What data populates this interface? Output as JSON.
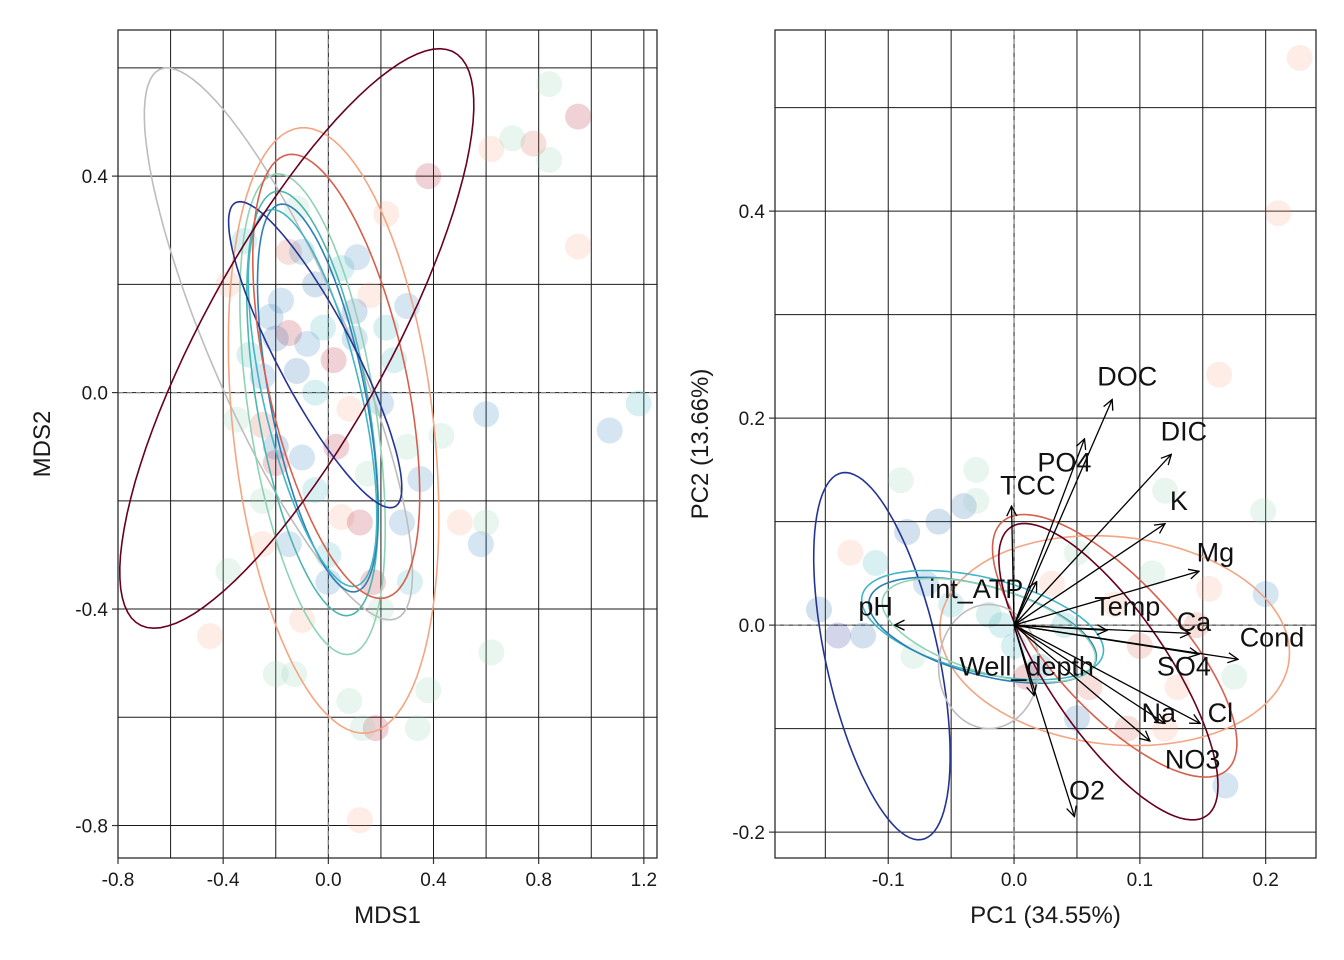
{
  "chart_data": [
    {
      "type": "scatter",
      "panel": "left",
      "xlabel": "MDS1",
      "ylabel": "MDS2",
      "xlim": [
        -0.8,
        1.25
      ],
      "ylim": [
        -0.86,
        0.67
      ],
      "xticks": [
        -0.8,
        -0.4,
        0.0,
        0.4,
        0.8,
        1.2
      ],
      "xtick_labels": [
        "-0.8",
        "-0.4",
        "0.0",
        "0.4",
        "0.8",
        "1.2"
      ],
      "yticks": [
        -0.8,
        -0.4,
        0.0,
        0.4
      ],
      "ytick_labels": [
        "-0.8",
        "-0.4",
        "0.0",
        "0.4"
      ],
      "grid": true,
      "zero_lines": "dashed",
      "marker_opacity": 0.2,
      "points": [
        {
          "x": 0.84,
          "y": 0.57,
          "color": "#8fd3b4"
        },
        {
          "x": 0.95,
          "y": 0.51,
          "color": "#b2182b"
        },
        {
          "x": 0.62,
          "y": 0.45,
          "color": "#f4a582"
        },
        {
          "x": 0.78,
          "y": 0.46,
          "color": "#d6604d"
        },
        {
          "x": 0.7,
          "y": 0.47,
          "color": "#8fd3b4"
        },
        {
          "x": 0.84,
          "y": 0.43,
          "color": "#8fd3b4"
        },
        {
          "x": 0.95,
          "y": 0.27,
          "color": "#f4a582"
        },
        {
          "x": 0.38,
          "y": 0.4,
          "color": "#b2182b"
        },
        {
          "x": 0.22,
          "y": 0.33,
          "color": "#f4a582"
        },
        {
          "x": -0.12,
          "y": 0.34,
          "color": "#8fd3b4"
        },
        {
          "x": -0.38,
          "y": 0.2,
          "color": "#f4a582"
        },
        {
          "x": -0.15,
          "y": 0.26,
          "color": "#d6604d"
        },
        {
          "x": -0.1,
          "y": 0.26,
          "color": "#2c7fb8"
        },
        {
          "x": 0.05,
          "y": 0.23,
          "color": "#41b6c4"
        },
        {
          "x": 0.11,
          "y": 0.25,
          "color": "#2c7fb8"
        },
        {
          "x": -0.18,
          "y": 0.17,
          "color": "#2c7fb8"
        },
        {
          "x": -0.22,
          "y": 0.14,
          "color": "#2c7fb8"
        },
        {
          "x": -0.15,
          "y": 0.11,
          "color": "#b2182b"
        },
        {
          "x": -0.2,
          "y": 0.1,
          "color": "#2166ac"
        },
        {
          "x": -0.08,
          "y": 0.09,
          "color": "#2c7fb8"
        },
        {
          "x": -0.02,
          "y": 0.12,
          "color": "#41b6c4"
        },
        {
          "x": 0.02,
          "y": 0.06,
          "color": "#b2182b"
        },
        {
          "x": -0.3,
          "y": 0.07,
          "color": "#41b6c4"
        },
        {
          "x": -0.25,
          "y": 0.03,
          "color": "#2c7fb8"
        },
        {
          "x": -0.12,
          "y": 0.04,
          "color": "#2166ac"
        },
        {
          "x": 0.1,
          "y": 0.1,
          "color": "#2c7fb8"
        },
        {
          "x": 0.22,
          "y": 0.12,
          "color": "#41b6c4"
        },
        {
          "x": 0.16,
          "y": 0.18,
          "color": "#f4a582"
        },
        {
          "x": 0.3,
          "y": 0.16,
          "color": "#2c7fb8"
        },
        {
          "x": -0.05,
          "y": 0.0,
          "color": "#41b6c4"
        },
        {
          "x": 0.08,
          "y": -0.03,
          "color": "#f4a582"
        },
        {
          "x": 0.2,
          "y": -0.02,
          "color": "#2c7fb8"
        },
        {
          "x": -0.35,
          "y": -0.05,
          "color": "#8fd3b4"
        },
        {
          "x": -0.2,
          "y": -0.1,
          "color": "#2166ac"
        },
        {
          "x": -0.1,
          "y": -0.12,
          "color": "#2c7fb8"
        },
        {
          "x": 0.03,
          "y": -0.1,
          "color": "#b2182b"
        },
        {
          "x": 0.15,
          "y": -0.15,
          "color": "#8fd3b4"
        },
        {
          "x": 0.3,
          "y": -0.1,
          "color": "#8fd3b4"
        },
        {
          "x": -0.2,
          "y": -0.13,
          "color": "#b2182b"
        },
        {
          "x": -0.05,
          "y": -0.18,
          "color": "#41b6c4"
        },
        {
          "x": 0.05,
          "y": -0.23,
          "color": "#f4a582"
        },
        {
          "x": 0.12,
          "y": -0.24,
          "color": "#b2182b"
        },
        {
          "x": 0.28,
          "y": -0.24,
          "color": "#2c7fb8"
        },
        {
          "x": -0.25,
          "y": -0.2,
          "color": "#8fd3b4"
        },
        {
          "x": -0.15,
          "y": -0.28,
          "color": "#2c7fb8"
        },
        {
          "x": 0.0,
          "y": -0.3,
          "color": "#41b6c4"
        },
        {
          "x": 0.58,
          "y": -0.28,
          "color": "#2c7fb8"
        },
        {
          "x": 0.6,
          "y": -0.24,
          "color": "#8fd3b4"
        },
        {
          "x": 0.5,
          "y": -0.24,
          "color": "#f4a582"
        },
        {
          "x": 0.43,
          "y": -0.08,
          "color": "#8fd3b4"
        },
        {
          "x": 0.6,
          "y": -0.04,
          "color": "#2c7fb8"
        },
        {
          "x": 1.07,
          "y": -0.07,
          "color": "#2c7fb8"
        },
        {
          "x": 1.18,
          "y": -0.02,
          "color": "#41b6c4"
        },
        {
          "x": -0.38,
          "y": -0.33,
          "color": "#8fd3b4"
        },
        {
          "x": 0.0,
          "y": -0.35,
          "color": "#2c7fb8"
        },
        {
          "x": 0.17,
          "y": -0.35,
          "color": "#b2182b"
        },
        {
          "x": 0.31,
          "y": -0.35,
          "color": "#41b6c4"
        },
        {
          "x": 0.2,
          "y": -0.4,
          "color": "#8fd3b4"
        },
        {
          "x": -0.1,
          "y": -0.42,
          "color": "#f4a582"
        },
        {
          "x": -0.45,
          "y": -0.45,
          "color": "#f4a582"
        },
        {
          "x": 0.62,
          "y": -0.48,
          "color": "#8fd3b4"
        },
        {
          "x": -0.13,
          "y": -0.52,
          "color": "#8fd3b4"
        },
        {
          "x": -0.2,
          "y": -0.52,
          "color": "#8fd3b4"
        },
        {
          "x": 0.38,
          "y": -0.55,
          "color": "#8fd3b4"
        },
        {
          "x": 0.08,
          "y": -0.57,
          "color": "#8fd3b4"
        },
        {
          "x": 0.18,
          "y": -0.62,
          "color": "#b2182b"
        },
        {
          "x": 0.34,
          "y": -0.62,
          "color": "#8fd3b4"
        },
        {
          "x": 0.13,
          "y": -0.62,
          "color": "#8fd3b4"
        },
        {
          "x": 0.12,
          "y": -0.79,
          "color": "#f4a582"
        },
        {
          "x": -0.25,
          "y": -0.28,
          "color": "#f4a582"
        },
        {
          "x": -0.32,
          "y": 0.28,
          "color": "#41b6c4"
        },
        {
          "x": -0.05,
          "y": 0.2,
          "color": "#2166ac"
        },
        {
          "x": 0.25,
          "y": 0.06,
          "color": "#41b6c4"
        },
        {
          "x": 0.1,
          "y": 0.15,
          "color": "#2166ac"
        },
        {
          "x": -0.25,
          "y": -0.06,
          "color": "#d6604d"
        },
        {
          "x": 0.35,
          "y": -0.16,
          "color": "#2c7fb8"
        }
      ],
      "ellipses": [
        {
          "cx": -0.19,
          "cy": 0.09,
          "rx": 0.69,
          "ry": 0.21,
          "angle_deg": -45,
          "color": "#bdbdbd"
        },
        {
          "cx": 0.02,
          "cy": -0.07,
          "rx": 0.58,
          "ry": 0.37,
          "angle_deg": -70,
          "color": "#f4a582"
        },
        {
          "cx": -0.06,
          "cy": -0.04,
          "rx": 0.47,
          "ry": 0.23,
          "angle_deg": -68,
          "color": "#8fd3b4"
        },
        {
          "cx": -0.06,
          "cy": -0.02,
          "rx": 0.42,
          "ry": 0.2,
          "angle_deg": -66,
          "color": "#4db6ac"
        },
        {
          "cx": -0.04,
          "cy": -0.01,
          "rx": 0.39,
          "ry": 0.17,
          "angle_deg": -64,
          "color": "#2c7fb8"
        },
        {
          "cx": -0.06,
          "cy": -0.01,
          "rx": 0.39,
          "ry": 0.17,
          "angle_deg": -60,
          "color": "#41b6c4"
        },
        {
          "cx": -0.05,
          "cy": 0.07,
          "rx": 0.42,
          "ry": 0.11,
          "angle_deg": -40,
          "color": "#253494"
        },
        {
          "cx": 0.03,
          "cy": 0.03,
          "rx": 0.46,
          "ry": 0.24,
          "angle_deg": -58,
          "color": "#d6604d"
        },
        {
          "cx": -0.12,
          "cy": 0.1,
          "rx": 0.82,
          "ry": 0.26,
          "angle_deg": 37,
          "color": "#67001f"
        }
      ]
    },
    {
      "type": "scatter",
      "panel": "right",
      "xlabel": "PC1 (34.55%)",
      "ylabel": "PC2 (13.66%)",
      "xlim": [
        -0.19,
        0.24
      ],
      "ylim": [
        -0.225,
        0.575
      ],
      "xticks": [
        -0.1,
        0.0,
        0.1,
        0.2
      ],
      "xtick_labels": [
        "-0.1",
        "0.0",
        "0.1",
        "0.2"
      ],
      "yticks": [
        -0.2,
        0.0,
        0.2,
        0.4
      ],
      "ytick_labels": [
        "-0.2",
        "0.0",
        "0.2",
        "0.4"
      ],
      "grid": true,
      "zero_lines": "dashed",
      "marker_opacity": 0.2,
      "points": [
        {
          "x": 0.227,
          "y": 0.548,
          "color": "#f4a582"
        },
        {
          "x": 0.21,
          "y": 0.398,
          "color": "#f4a582"
        },
        {
          "x": 0.163,
          "y": 0.242,
          "color": "#f4a582"
        },
        {
          "x": -0.04,
          "y": 0.115,
          "color": "#2166ac"
        },
        {
          "x": -0.085,
          "y": 0.09,
          "color": "#2166ac"
        },
        {
          "x": -0.155,
          "y": 0.015,
          "color": "#2166ac"
        },
        {
          "x": -0.12,
          "y": -0.01,
          "color": "#2166ac"
        },
        {
          "x": -0.03,
          "y": 0.15,
          "color": "#8fd3b4"
        },
        {
          "x": -0.11,
          "y": 0.06,
          "color": "#41b6c4"
        },
        {
          "x": -0.07,
          "y": 0.04,
          "color": "#2c7fb8"
        },
        {
          "x": -0.05,
          "y": 0.02,
          "color": "#41b6c4"
        },
        {
          "x": -0.02,
          "y": 0.01,
          "color": "#4db6ac"
        },
        {
          "x": 0.0,
          "y": -0.02,
          "color": "#41b6c4"
        },
        {
          "x": 0.02,
          "y": -0.04,
          "color": "#2c7fb8"
        },
        {
          "x": 0.03,
          "y": 0.04,
          "color": "#f4a582"
        },
        {
          "x": 0.05,
          "y": 0.07,
          "color": "#8fd3b4"
        },
        {
          "x": 0.08,
          "y": 0.02,
          "color": "#f4a582"
        },
        {
          "x": 0.1,
          "y": -0.02,
          "color": "#d6604d"
        },
        {
          "x": 0.06,
          "y": -0.06,
          "color": "#d6604d"
        },
        {
          "x": 0.09,
          "y": -0.1,
          "color": "#d6604d"
        },
        {
          "x": 0.12,
          "y": -0.1,
          "color": "#f4a582"
        },
        {
          "x": 0.145,
          "y": 0.0,
          "color": "#d6604d"
        },
        {
          "x": 0.155,
          "y": 0.035,
          "color": "#f4a582"
        },
        {
          "x": 0.198,
          "y": 0.11,
          "color": "#8fd3b4"
        },
        {
          "x": 0.2,
          "y": 0.03,
          "color": "#2c7fb8"
        },
        {
          "x": 0.175,
          "y": -0.05,
          "color": "#8fd3b4"
        },
        {
          "x": 0.168,
          "y": -0.155,
          "color": "#2c7fb8"
        },
        {
          "x": 0.12,
          "y": 0.13,
          "color": "#8fd3b4"
        },
        {
          "x": -0.03,
          "y": 0.12,
          "color": "#8fd3b4"
        },
        {
          "x": -0.09,
          "y": 0.14,
          "color": "#8fd3b4"
        },
        {
          "x": -0.13,
          "y": 0.07,
          "color": "#f4a582"
        },
        {
          "x": 0.01,
          "y": -0.05,
          "color": "#b2182b"
        },
        {
          "x": 0.05,
          "y": -0.09,
          "color": "#2166ac"
        },
        {
          "x": -0.01,
          "y": 0.0,
          "color": "#41b6c4"
        },
        {
          "x": 0.04,
          "y": 0.0,
          "color": "#41b6c4"
        },
        {
          "x": -0.08,
          "y": -0.03,
          "color": "#8fd3b4"
        },
        {
          "x": 0.11,
          "y": 0.05,
          "color": "#8fd3b4"
        },
        {
          "x": 0.13,
          "y": -0.06,
          "color": "#f4a582"
        },
        {
          "x": -0.06,
          "y": 0.1,
          "color": "#2166ac"
        },
        {
          "x": -0.14,
          "y": -0.01,
          "color": "#253494"
        }
      ],
      "ellipses": [
        {
          "cx": -0.105,
          "cy": -0.03,
          "rx": 0.18,
          "ry": 0.045,
          "angle_deg": -80,
          "color": "#253494"
        },
        {
          "cx": 0.08,
          "cy": -0.015,
          "rx": 0.14,
          "ry": 0.1,
          "angle_deg": -10,
          "color": "#f4a582"
        },
        {
          "cx": -0.025,
          "cy": 0.0,
          "rx": 0.1,
          "ry": 0.045,
          "angle_deg": -18,
          "color": "#41b6c4"
        },
        {
          "cx": -0.025,
          "cy": -0.005,
          "rx": 0.095,
          "ry": 0.042,
          "angle_deg": -20,
          "color": "#2c7fb8"
        },
        {
          "cx": -0.02,
          "cy": -0.005,
          "rx": 0.09,
          "ry": 0.04,
          "angle_deg": -22,
          "color": "#8fd3b4"
        },
        {
          "cx": 0.08,
          "cy": -0.02,
          "rx": 0.15,
          "ry": 0.055,
          "angle_deg": -55,
          "color": "#d6604d"
        },
        {
          "cx": 0.075,
          "cy": -0.045,
          "rx": 0.16,
          "ry": 0.05,
          "angle_deg": -62,
          "color": "#67001f"
        },
        {
          "cx": -0.02,
          "cy": -0.04,
          "rx": 0.04,
          "ry": 0.06,
          "angle_deg": 0,
          "color": "#bdbdbd"
        }
      ],
      "vectors": [
        {
          "label": "DOC",
          "x": 0.078,
          "y": 0.218,
          "lx": 0.09,
          "ly": 0.24
        },
        {
          "label": "DIC",
          "x": 0.125,
          "y": 0.165,
          "lx": 0.135,
          "ly": 0.187
        },
        {
          "label": "PO4",
          "x": 0.056,
          "y": 0.18,
          "lx": 0.04,
          "ly": 0.157
        },
        {
          "label": "TCC",
          "x": -0.002,
          "y": 0.115,
          "lx": 0.011,
          "ly": 0.135
        },
        {
          "label": "K",
          "x": 0.12,
          "y": 0.098,
          "lx": 0.131,
          "ly": 0.12
        },
        {
          "label": "Mg",
          "x": 0.147,
          "y": 0.052,
          "lx": 0.16,
          "ly": 0.07
        },
        {
          "label": "int_ATP",
          "x": 0.018,
          "y": 0.042,
          "lx": -0.03,
          "ly": 0.035
        },
        {
          "label": "Temp",
          "x": 0.074,
          "y": -0.005,
          "lx": 0.09,
          "ly": 0.018
        },
        {
          "label": "Ca",
          "x": 0.14,
          "y": -0.008,
          "lx": 0.143,
          "ly": 0.003
        },
        {
          "label": "Cond",
          "x": 0.178,
          "y": -0.033,
          "lx": 0.205,
          "ly": -0.012
        },
        {
          "label": "pH",
          "x": -0.095,
          "y": 0.0,
          "lx": -0.11,
          "ly": 0.018
        },
        {
          "label": "Well_depth",
          "x": 0.016,
          "y": -0.068,
          "lx": 0.01,
          "ly": -0.04
        },
        {
          "label": "SO4",
          "x": 0.147,
          "y": -0.028,
          "lx": 0.135,
          "ly": -0.04
        },
        {
          "label": "Na",
          "x": 0.12,
          "y": -0.095,
          "lx": 0.115,
          "ly": -0.085
        },
        {
          "label": "Cl",
          "x": 0.148,
          "y": -0.095,
          "lx": 0.164,
          "ly": -0.085
        },
        {
          "label": "NO3",
          "x": 0.108,
          "y": -0.112,
          "lx": 0.142,
          "ly": -0.13
        },
        {
          "label": "O2",
          "x": 0.048,
          "y": -0.185,
          "lx": 0.058,
          "ly": -0.16
        }
      ]
    }
  ]
}
